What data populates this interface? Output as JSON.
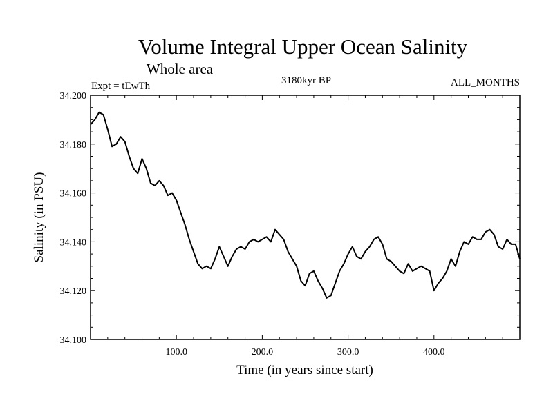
{
  "chart_data": {
    "type": "line",
    "title": "Volume Integral Upper Ocean Salinity",
    "subtitle": "Whole area",
    "annotations": {
      "left": "Expt = tEwTh",
      "center": "3180kyr BP",
      "right": "ALL_MONTHS"
    },
    "xlabel": "Time (in years since start)",
    "ylabel": "Salinity (in PSU)",
    "xlim": [
      0,
      500
    ],
    "ylim": [
      34.1,
      34.2
    ],
    "x_ticks": [
      100,
      200,
      300,
      400
    ],
    "x_tick_labels": [
      "100.0",
      "200.0",
      "300.0",
      "400.0"
    ],
    "y_ticks": [
      34.1,
      34.12,
      34.14,
      34.16,
      34.18,
      34.2
    ],
    "y_tick_labels": [
      "34.100",
      "34.120",
      "34.140",
      "34.160",
      "34.180",
      "34.200"
    ],
    "grid": false,
    "series": [
      {
        "name": "Salinity",
        "x": [
          0,
          5,
          10,
          15,
          20,
          25,
          30,
          35,
          40,
          45,
          50,
          55,
          60,
          65,
          70,
          75,
          80,
          85,
          90,
          95,
          100,
          105,
          110,
          115,
          120,
          125,
          130,
          135,
          140,
          145,
          150,
          155,
          160,
          165,
          170,
          175,
          180,
          185,
          190,
          195,
          200,
          205,
          210,
          215,
          220,
          225,
          230,
          235,
          240,
          245,
          250,
          255,
          260,
          265,
          270,
          275,
          280,
          285,
          290,
          295,
          300,
          305,
          310,
          315,
          320,
          325,
          330,
          335,
          340,
          345,
          350,
          355,
          360,
          365,
          370,
          375,
          380,
          385,
          390,
          395,
          400,
          405,
          410,
          415,
          420,
          425,
          430,
          435,
          440,
          445,
          450,
          455,
          460,
          465,
          470,
          475,
          480,
          485,
          490,
          495,
          500
        ],
        "values": [
          34.188,
          34.19,
          34.193,
          34.192,
          34.186,
          34.179,
          34.18,
          34.183,
          34.181,
          34.175,
          34.17,
          34.168,
          34.174,
          34.17,
          34.164,
          34.163,
          34.165,
          34.163,
          34.159,
          34.16,
          34.157,
          34.152,
          34.147,
          34.141,
          34.136,
          34.131,
          34.129,
          34.13,
          34.129,
          34.133,
          34.138,
          34.134,
          34.13,
          34.134,
          34.137,
          34.138,
          34.137,
          34.14,
          34.141,
          34.14,
          34.141,
          34.142,
          34.14,
          34.145,
          34.143,
          34.141,
          34.136,
          34.133,
          34.13,
          34.124,
          34.122,
          34.127,
          34.128,
          34.124,
          34.121,
          34.117,
          34.118,
          34.123,
          34.128,
          34.131,
          34.135,
          34.138,
          34.134,
          34.133,
          34.136,
          34.138,
          34.141,
          34.142,
          34.139,
          34.133,
          34.132,
          34.13,
          34.128,
          34.127,
          34.131,
          34.128,
          34.129,
          34.13,
          34.129,
          34.128,
          34.12,
          34.123,
          34.125,
          34.128,
          34.133,
          34.13,
          34.136,
          34.14,
          34.139,
          34.142,
          34.141,
          34.141,
          34.144,
          34.145,
          34.143,
          34.138,
          34.137,
          34.141,
          34.139,
          34.139,
          34.133
        ]
      }
    ]
  }
}
